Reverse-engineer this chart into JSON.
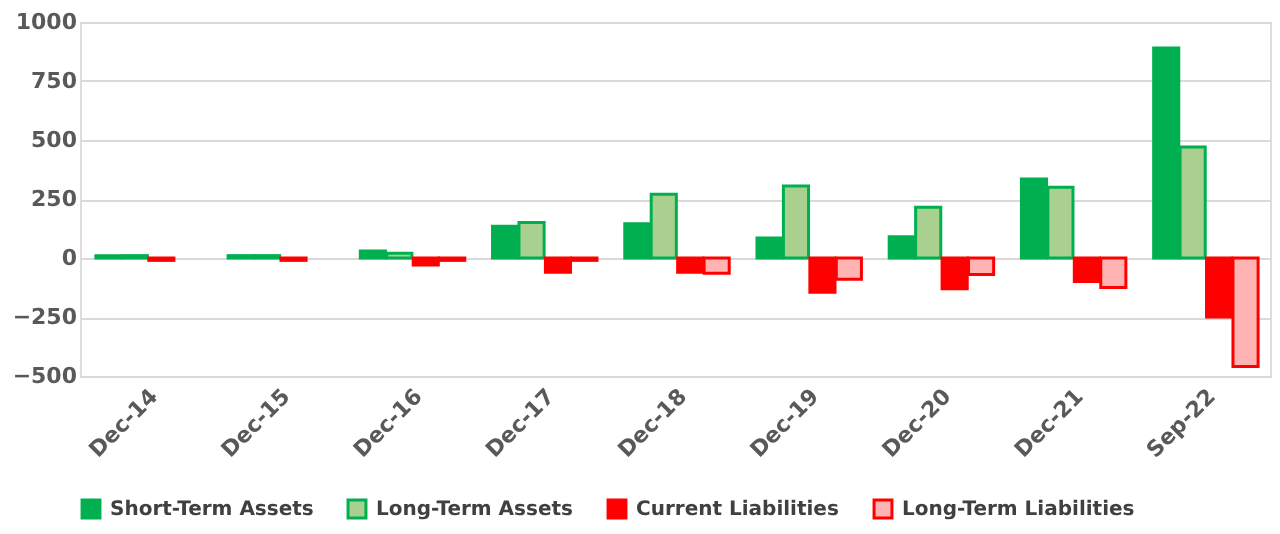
{
  "chart_data": {
    "type": "bar",
    "categories": [
      "Dec-14",
      "Dec-15",
      "Dec-16",
      "Dec-17",
      "Dec-18",
      "Dec-19",
      "Dec-20",
      "Dec-21",
      "Sep-22"
    ],
    "series": [
      {
        "name": "Short-Term Assets",
        "color": "#00b050",
        "values": [
          10,
          10,
          30,
          135,
          145,
          85,
          90,
          335,
          890
        ]
      },
      {
        "name": "Long-Term Assets",
        "color": "#a9d08e",
        "values": [
          10,
          10,
          20,
          150,
          270,
          305,
          215,
          300,
          470
        ]
      },
      {
        "name": "Current Liabilities",
        "color": "#ff0000",
        "values": [
          -10,
          -10,
          -30,
          -60,
          -60,
          -145,
          -130,
          -100,
          -250
        ]
      },
      {
        "name": "Long-Term Liabilities",
        "color": "#ffb3b3",
        "values": [
          null,
          null,
          -10,
          -10,
          -65,
          -90,
          -70,
          -125,
          -460
        ]
      }
    ],
    "ylim": [
      -500,
      1000
    ],
    "yticks": [
      -500,
      -250,
      0,
      250,
      500,
      750,
      1000
    ],
    "grid": "y",
    "legend": "bottom"
  }
}
